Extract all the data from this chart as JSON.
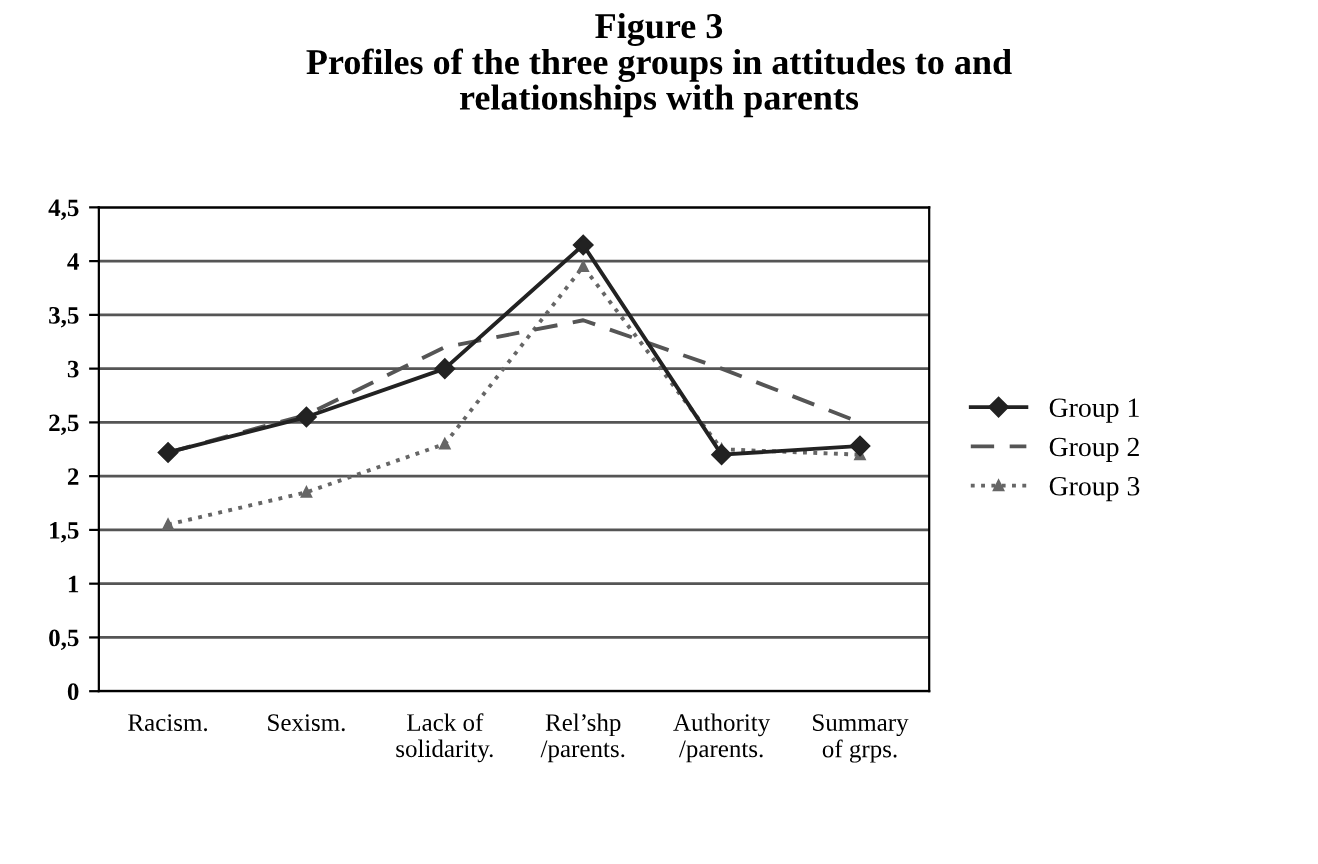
{
  "chart_data": {
    "type": "line",
    "title": "Figure 3\nProfiles of the three groups in attitudes to and\nrelationships with parents",
    "categories": [
      "Racism.",
      "Sexism.",
      "Lack of\nsolidarity.",
      "Rel’shp\n/parents.",
      "Authority\n/parents.",
      "Summary\nof grps."
    ],
    "series": [
      {
        "name": "Group 1",
        "color": "#222222",
        "line_style": "solid",
        "marker": "diamond",
        "values": [
          2.22,
          2.55,
          3.0,
          4.15,
          2.2,
          2.28
        ]
      },
      {
        "name": "Group 2",
        "color": "#555555",
        "line_style": "dashed",
        "marker": "none",
        "values": [
          2.22,
          2.57,
          3.2,
          3.45,
          3.0,
          2.5
        ]
      },
      {
        "name": "Group 3",
        "color": "#666666",
        "line_style": "dotted",
        "marker": "triangle",
        "values": [
          1.55,
          1.85,
          2.3,
          3.95,
          2.25,
          2.2
        ]
      }
    ],
    "ylim": [
      0,
      4.5
    ],
    "yticks": [
      0,
      {
        "value": 0.5,
        "label": "0,5"
      },
      1,
      {
        "value": 1.5,
        "label": "1,5"
      },
      2,
      {
        "value": 2.5,
        "label": "2,5"
      },
      3,
      {
        "value": 3.5,
        "label": "3,5"
      },
      4,
      {
        "value": 4.5,
        "label": "4,5"
      }
    ],
    "grid": "y",
    "legend": "right"
  }
}
